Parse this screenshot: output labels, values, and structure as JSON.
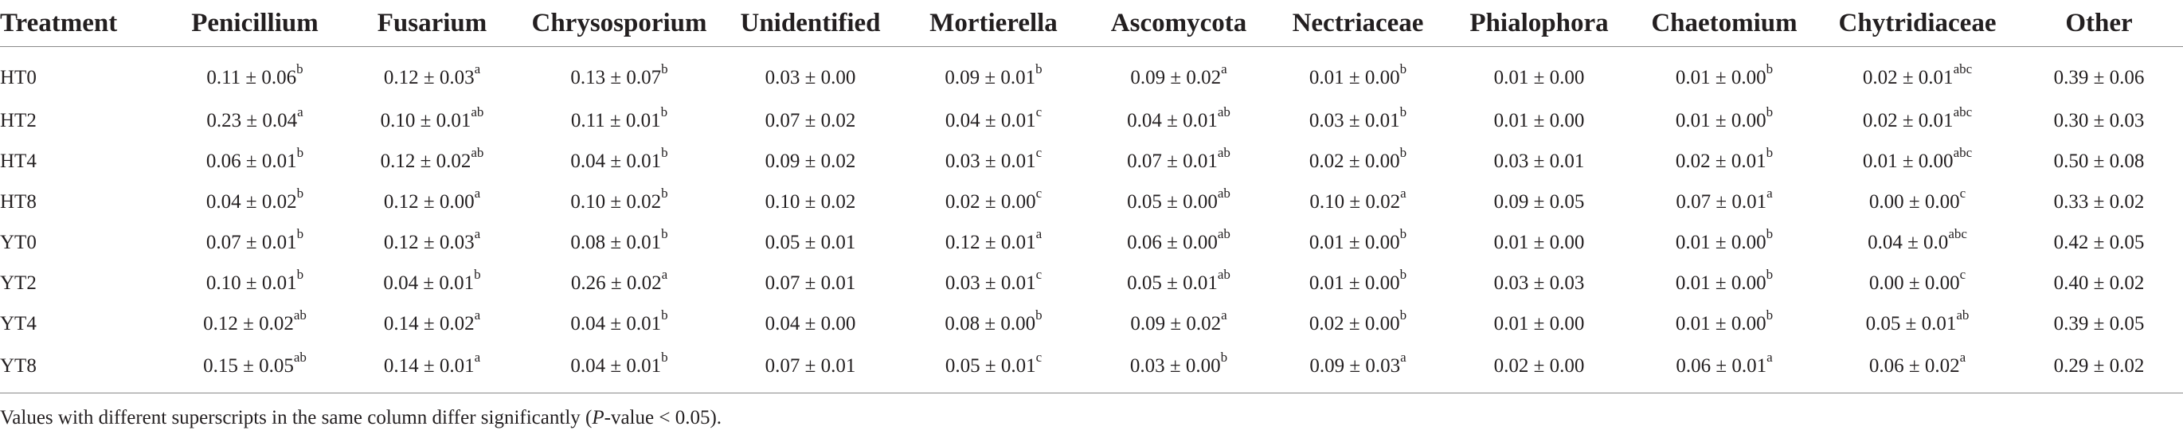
{
  "table": {
    "columns": [
      "Treatment",
      "Penicillium",
      "Fusarium",
      "Chrysosporium",
      "Unidentified",
      "Mortierella",
      "Ascomycota",
      "Nectriaceae",
      "Phialophora",
      "Chaetomium",
      "Chytridiaceae",
      "Other"
    ],
    "rows": [
      {
        "treatment": "HT0",
        "cells": [
          {
            "v": "0.11 ± 0.06",
            "s": "b"
          },
          {
            "v": "0.12 ± 0.03",
            "s": "a"
          },
          {
            "v": "0.13 ± 0.07",
            "s": "b"
          },
          {
            "v": "0.03 ± 0.00",
            "s": ""
          },
          {
            "v": "0.09 ± 0.01",
            "s": "b"
          },
          {
            "v": "0.09 ± 0.02",
            "s": "a"
          },
          {
            "v": "0.01 ± 0.00",
            "s": "b"
          },
          {
            "v": "0.01 ± 0.00",
            "s": ""
          },
          {
            "v": "0.01 ± 0.00",
            "s": "b"
          },
          {
            "v": "0.02 ± 0.01",
            "s": "abc"
          },
          {
            "v": "0.39 ± 0.06",
            "s": ""
          }
        ]
      },
      {
        "treatment": "HT2",
        "cells": [
          {
            "v": "0.23 ± 0.04",
            "s": "a"
          },
          {
            "v": "0.10 ± 0.01",
            "s": "ab"
          },
          {
            "v": "0.11 ± 0.01",
            "s": "b"
          },
          {
            "v": "0.07 ± 0.02",
            "s": ""
          },
          {
            "v": "0.04 ± 0.01",
            "s": "c"
          },
          {
            "v": "0.04 ± 0.01",
            "s": "ab"
          },
          {
            "v": "0.03 ± 0.01",
            "s": "b"
          },
          {
            "v": "0.01 ± 0.00",
            "s": ""
          },
          {
            "v": "0.01 ± 0.00",
            "s": "b"
          },
          {
            "v": "0.02 ± 0.01",
            "s": "abc"
          },
          {
            "v": "0.30 ± 0.03",
            "s": ""
          }
        ]
      },
      {
        "treatment": "HT4",
        "cells": [
          {
            "v": "0.06 ± 0.01",
            "s": "b"
          },
          {
            "v": "0.12 ± 0.02",
            "s": "ab"
          },
          {
            "v": "0.04 ± 0.01",
            "s": "b"
          },
          {
            "v": "0.09 ± 0.02",
            "s": ""
          },
          {
            "v": "0.03 ± 0.01",
            "s": "c"
          },
          {
            "v": "0.07 ± 0.01",
            "s": "ab"
          },
          {
            "v": "0.02 ± 0.00",
            "s": "b"
          },
          {
            "v": "0.03 ± 0.01",
            "s": ""
          },
          {
            "v": "0.02 ± 0.01",
            "s": "b"
          },
          {
            "v": "0.01 ± 0.00",
            "s": "abc"
          },
          {
            "v": "0.50 ± 0.08",
            "s": ""
          }
        ]
      },
      {
        "treatment": "HT8",
        "cells": [
          {
            "v": "0.04 ± 0.02",
            "s": "b"
          },
          {
            "v": "0.12 ± 0.00",
            "s": "a"
          },
          {
            "v": "0.10 ± 0.02",
            "s": "b"
          },
          {
            "v": "0.10 ± 0.02",
            "s": ""
          },
          {
            "v": "0.02 ± 0.00",
            "s": "c"
          },
          {
            "v": "0.05 ± 0.00",
            "s": "ab"
          },
          {
            "v": "0.10 ± 0.02",
            "s": "a"
          },
          {
            "v": "0.09 ± 0.05",
            "s": ""
          },
          {
            "v": "0.07 ± 0.01",
            "s": "a"
          },
          {
            "v": "0.00 ± 0.00",
            "s": "c"
          },
          {
            "v": "0.33 ± 0.02",
            "s": ""
          }
        ]
      },
      {
        "treatment": "YT0",
        "cells": [
          {
            "v": "0.07 ± 0.01",
            "s": "b"
          },
          {
            "v": "0.12 ± 0.03",
            "s": "a"
          },
          {
            "v": "0.08 ± 0.01",
            "s": "b"
          },
          {
            "v": "0.05 ± 0.01",
            "s": ""
          },
          {
            "v": "0.12 ± 0.01",
            "s": "a"
          },
          {
            "v": "0.06 ± 0.00",
            "s": "ab"
          },
          {
            "v": "0.01 ± 0.00",
            "s": "b"
          },
          {
            "v": "0.01 ± 0.00",
            "s": ""
          },
          {
            "v": "0.01 ± 0.00",
            "s": "b"
          },
          {
            "v": "0.04 ± 0.0",
            "s": "abc"
          },
          {
            "v": "0.42 ± 0.05",
            "s": ""
          }
        ]
      },
      {
        "treatment": "YT2",
        "cells": [
          {
            "v": "0.10 ± 0.01",
            "s": "b"
          },
          {
            "v": "0.04 ± 0.01",
            "s": "b"
          },
          {
            "v": "0.26 ± 0.02",
            "s": "a"
          },
          {
            "v": "0.07 ± 0.01",
            "s": ""
          },
          {
            "v": "0.03 ± 0.01",
            "s": "c"
          },
          {
            "v": "0.05 ± 0.01",
            "s": "ab"
          },
          {
            "v": "0.01 ± 0.00",
            "s": "b"
          },
          {
            "v": "0.03 ± 0.03",
            "s": ""
          },
          {
            "v": "0.01 ± 0.00",
            "s": "b"
          },
          {
            "v": "0.00 ± 0.00",
            "s": "c"
          },
          {
            "v": "0.40 ± 0.02",
            "s": ""
          }
        ]
      },
      {
        "treatment": "YT4",
        "cells": [
          {
            "v": "0.12 ± 0.02",
            "s": "ab"
          },
          {
            "v": "0.14 ± 0.02",
            "s": "a"
          },
          {
            "v": "0.04 ± 0.01",
            "s": "b"
          },
          {
            "v": "0.04 ± 0.00",
            "s": ""
          },
          {
            "v": "0.08 ± 0.00",
            "s": "b"
          },
          {
            "v": "0.09 ± 0.02",
            "s": "a"
          },
          {
            "v": "0.02 ± 0.00",
            "s": "b"
          },
          {
            "v": "0.01 ± 0.00",
            "s": ""
          },
          {
            "v": "0.01 ± 0.00",
            "s": "b"
          },
          {
            "v": "0.05 ± 0.01",
            "s": "ab"
          },
          {
            "v": "0.39 ± 0.05",
            "s": ""
          }
        ]
      },
      {
        "treatment": "YT8",
        "cells": [
          {
            "v": "0.15 ± 0.05",
            "s": "ab"
          },
          {
            "v": "0.14 ± 0.01",
            "s": "a"
          },
          {
            "v": "0.04 ± 0.01",
            "s": "b"
          },
          {
            "v": "0.07 ± 0.01",
            "s": ""
          },
          {
            "v": "0.05 ± 0.01",
            "s": "c"
          },
          {
            "v": "0.03 ± 0.00",
            "s": "b"
          },
          {
            "v": "0.09 ± 0.03",
            "s": "a"
          },
          {
            "v": "0.02 ± 0.00",
            "s": ""
          },
          {
            "v": "0.06 ± 0.01",
            "s": "a"
          },
          {
            "v": "0.06 ± 0.02",
            "s": "a"
          },
          {
            "v": "0.29 ± 0.02",
            "s": ""
          }
        ]
      }
    ]
  },
  "footnote": {
    "pre": "Values with different superscripts in the same column differ significantly (",
    "p_italic": "P",
    "post": "-value < 0.05)."
  }
}
